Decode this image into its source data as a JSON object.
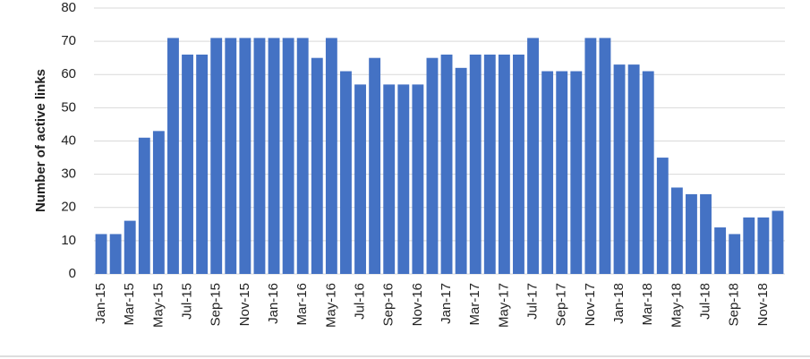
{
  "chart_data": {
    "type": "bar",
    "y_label": "Number of active links",
    "categories": [
      "Jan-15",
      null,
      "Mar-15",
      null,
      "May-15",
      null,
      "Jul-15",
      null,
      "Sep-15",
      null,
      "Nov-15",
      null,
      "Jan-16",
      null,
      "Mar-16",
      null,
      "May-16",
      null,
      "Jul-16",
      null,
      "Sep-16",
      null,
      "Nov-16",
      null,
      "Jan-17",
      null,
      "Mar-17",
      null,
      "May-17",
      null,
      "Jul-17",
      null,
      "Sep-17",
      null,
      "Nov-17",
      null,
      "Jan-18",
      null,
      "Mar-18",
      null,
      "May-18",
      null,
      "Jul-18",
      null,
      "Sep-18",
      null,
      "Nov-18",
      null
    ],
    "values": [
      12,
      12,
      16,
      41,
      43,
      71,
      66,
      66,
      71,
      71,
      71,
      71,
      71,
      71,
      71,
      65,
      71,
      61,
      57,
      65,
      57,
      57,
      57,
      65,
      66,
      62,
      66,
      66,
      66,
      66,
      71,
      61,
      61,
      61,
      71,
      71,
      63,
      63,
      61,
      35,
      26,
      24,
      24,
      14,
      12,
      17,
      17,
      19
    ],
    "color": "#4472c4",
    "ylim": [
      0,
      80
    ],
    "yticks": [
      0,
      10,
      20,
      30,
      40,
      50,
      60,
      70,
      80
    ],
    "grid": true
  }
}
